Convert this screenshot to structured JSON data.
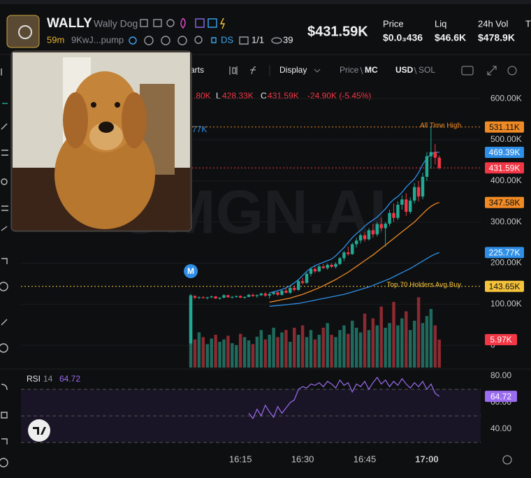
{
  "header": {
    "symbol": "WALLY",
    "name": "Wally Dog",
    "age": "59m",
    "address": "9KwJ...pump",
    "ds": "DS",
    "ratio": "1/1",
    "views": "39",
    "market_cap": "$431.59K",
    "stats": [
      {
        "label": "Price",
        "value": "$0.0₃436"
      },
      {
        "label": "Liq",
        "value": "$46.6K"
      },
      {
        "label": "24h Vol",
        "value": "$478.9K"
      },
      {
        "label": "T"
      }
    ]
  },
  "toolbar": {
    "charts": "arts",
    "display": "Display",
    "price": "Price",
    "mc": "MC",
    "usd": "USD",
    "sol": "SOL"
  },
  "legend": {
    "high": ".80K",
    "low_key": "L",
    "low": "428.33K",
    "close_key": "C",
    "close": "431.59K",
    "change": "-24.90K (-5.45%)",
    "partial": "77K"
  },
  "chart_data": {
    "type": "candlestick",
    "watermark": "GMGN.AI",
    "event_marker": "M",
    "x": [
      "16:03",
      "16:04",
      "16:05",
      "16:06",
      "16:07",
      "16:08",
      "16:09",
      "16:10",
      "16:11",
      "16:12",
      "16:13",
      "16:14",
      "16:15",
      "16:16",
      "16:17",
      "16:18",
      "16:19",
      "16:20",
      "16:21",
      "16:22",
      "16:23",
      "16:24",
      "16:25",
      "16:26",
      "16:27",
      "16:28",
      "16:29",
      "16:30",
      "16:31",
      "16:32",
      "16:33",
      "16:34",
      "16:35",
      "16:36",
      "16:37",
      "16:38",
      "16:39",
      "16:40",
      "16:41",
      "16:42",
      "16:43",
      "16:44",
      "16:45",
      "16:46",
      "16:47",
      "16:48",
      "16:49",
      "16:50",
      "16:51",
      "16:52",
      "16:53",
      "16:54",
      "16:55",
      "16:56",
      "16:57",
      "16:58",
      "16:59",
      "17:00",
      "17:01",
      "17:02",
      "17:03"
    ],
    "xlim": [
      "15:22",
      "17:13"
    ],
    "xticks": [
      "16:15",
      "16:30",
      "16:45",
      "17:00"
    ],
    "ylim": [
      -54000,
      619000
    ],
    "yticks": [
      0,
      {
        "value": 100000,
        "label": "100.00K"
      },
      {
        "value": 200000,
        "label": "200.00K"
      },
      {
        "value": 300000,
        "label": "300.00K"
      },
      {
        "value": 400000,
        "label": "400.00K"
      },
      {
        "value": 500000,
        "label": "500.00K"
      },
      {
        "value": 600000,
        "label": "600.00K"
      }
    ],
    "up_color": "#22ab94",
    "down_color": "#f23645",
    "ohlc": [
      [
        5000,
        125000,
        2000,
        120000
      ],
      [
        120000,
        122000,
        112000,
        116000
      ],
      [
        116000,
        119000,
        113000,
        117000
      ],
      [
        117000,
        120000,
        114000,
        115000
      ],
      [
        115000,
        118000,
        112000,
        117000
      ],
      [
        117000,
        121000,
        115000,
        119000
      ],
      [
        119000,
        120000,
        113000,
        114000
      ],
      [
        114000,
        117000,
        111000,
        116000
      ],
      [
        116000,
        124000,
        115000,
        122000
      ],
      [
        122000,
        123000,
        116000,
        117000
      ],
      [
        117000,
        120000,
        114000,
        118000
      ],
      [
        118000,
        121000,
        116000,
        120000
      ],
      [
        120000,
        122000,
        115000,
        116000
      ],
      [
        116000,
        119000,
        113000,
        118000
      ],
      [
        118000,
        125000,
        117000,
        123000
      ],
      [
        123000,
        126000,
        118000,
        120000
      ],
      [
        120000,
        124000,
        116000,
        122000
      ],
      [
        122000,
        128000,
        120000,
        126000
      ],
      [
        126000,
        130000,
        118000,
        121000
      ],
      [
        121000,
        127000,
        114000,
        125000
      ],
      [
        125000,
        132000,
        122000,
        129000
      ],
      [
        129000,
        131000,
        120000,
        123000
      ],
      [
        123000,
        136000,
        121000,
        133000
      ],
      [
        133000,
        140000,
        126000,
        128000
      ],
      [
        128000,
        142000,
        125000,
        140000
      ],
      [
        140000,
        146000,
        131000,
        135000
      ],
      [
        135000,
        160000,
        133000,
        156000
      ],
      [
        156000,
        165000,
        148000,
        152000
      ],
      [
        152000,
        178000,
        150000,
        174000
      ],
      [
        174000,
        190000,
        168000,
        186000
      ],
      [
        186000,
        192000,
        176000,
        180000
      ],
      [
        180000,
        196000,
        178000,
        192000
      ],
      [
        192000,
        198000,
        186000,
        188000
      ],
      [
        188000,
        199000,
        184000,
        196000
      ],
      [
        196000,
        200000,
        188000,
        191000
      ],
      [
        191000,
        202000,
        187000,
        198000
      ],
      [
        198000,
        215000,
        195000,
        212000
      ],
      [
        212000,
        230000,
        205000,
        226000
      ],
      [
        226000,
        240000,
        218000,
        222000
      ],
      [
        222000,
        250000,
        220000,
        246000
      ],
      [
        246000,
        262000,
        238000,
        255000
      ],
      [
        255000,
        272000,
        248000,
        268000
      ],
      [
        268000,
        275000,
        252000,
        258000
      ],
      [
        258000,
        285000,
        255000,
        280000
      ],
      [
        280000,
        296000,
        262000,
        270000
      ],
      [
        270000,
        300000,
        265000,
        295000
      ],
      [
        295000,
        310000,
        278000,
        285000
      ],
      [
        285000,
        300000,
        240000,
        296000
      ],
      [
        296000,
        330000,
        290000,
        322000
      ],
      [
        322000,
        345000,
        300000,
        310000
      ],
      [
        310000,
        350000,
        305000,
        342000
      ],
      [
        342000,
        365000,
        330000,
        355000
      ],
      [
        355000,
        370000,
        315000,
        325000
      ],
      [
        325000,
        360000,
        320000,
        352000
      ],
      [
        352000,
        395000,
        345000,
        385000
      ],
      [
        385000,
        400000,
        350000,
        362000
      ],
      [
        362000,
        420000,
        355000,
        410000
      ],
      [
        410000,
        470000,
        400000,
        460000
      ],
      [
        460000,
        531110,
        430000,
        470000
      ],
      [
        470000,
        490000,
        440000,
        456490
      ],
      [
        456490,
        461800,
        428330,
        431590
      ]
    ],
    "series": [
      {
        "color": "#2f8fe6",
        "values": [
          null,
          null,
          null,
          null,
          null,
          null,
          null,
          null,
          null,
          null,
          null,
          null,
          null,
          null,
          null,
          null,
          null,
          null,
          null,
          128000,
          130000,
          133000,
          136000,
          140000,
          145000,
          152000,
          160000,
          170000,
          180000,
          188000,
          194000,
          198000,
          202000,
          206000,
          210000,
          218000,
          228000,
          238000,
          250000,
          262000,
          272000,
          280000,
          290000,
          298000,
          305000,
          312000,
          322000,
          332000,
          345000,
          355000,
          362000,
          372000,
          385000,
          395000,
          405000,
          420000,
          440000,
          455000,
          465000,
          470000,
          469390
        ]
      },
      {
        "color": "#f08a24",
        "values": [
          null,
          null,
          null,
          null,
          null,
          null,
          null,
          null,
          null,
          null,
          null,
          null,
          null,
          null,
          null,
          null,
          null,
          null,
          null,
          105000,
          107000,
          109000,
          111000,
          113000,
          115000,
          118000,
          121000,
          124000,
          128000,
          132000,
          136000,
          140000,
          145000,
          150000,
          155000,
          160000,
          166000,
          172000,
          178000,
          185000,
          192000,
          199000,
          206000,
          213000,
          220000,
          228000,
          236000,
          244000,
          252000,
          260000,
          268000,
          276000,
          284000,
          292000,
          300000,
          310000,
          320000,
          330000,
          338000,
          344000,
          347580
        ]
      },
      {
        "color": "#2f8fe6",
        "values": [
          null,
          null,
          null,
          null,
          null,
          null,
          null,
          null,
          null,
          null,
          null,
          null,
          null,
          null,
          null,
          null,
          null,
          null,
          null,
          95000,
          96000,
          97000,
          98000,
          99000,
          100000,
          101000,
          102000,
          104000,
          106000,
          108000,
          110000,
          112000,
          114000,
          116000,
          118000,
          120000,
          122000,
          124000,
          127000,
          130000,
          133000,
          136000,
          139000,
          142000,
          146000,
          150000,
          154000,
          158000,
          162000,
          167000,
          172000,
          177000,
          182000,
          187000,
          193000,
          199000,
          205000,
          211000,
          217000,
          222000,
          225770
        ]
      }
    ],
    "volume": [
      15500,
      6000,
      7500,
      6500,
      5000,
      6200,
      7000,
      5500,
      6000,
      6800,
      5200,
      4800,
      7200,
      6500,
      5800,
      5000,
      6600,
      8000,
      6000,
      7000,
      8500,
      6500,
      7500,
      8000,
      5500,
      8500,
      7000,
      9000,
      6500,
      8000,
      6000,
      7000,
      8500,
      9500,
      7000,
      6500,
      8000,
      9000,
      7200,
      10000,
      8500,
      7500,
      11500,
      8000,
      10500,
      9000,
      13000,
      8500,
      9500,
      14000,
      9000,
      10500,
      12000,
      8000,
      10000,
      15000,
      9500,
      11000,
      12500,
      9000,
      5970
    ],
    "markers": [
      {
        "value": 531110,
        "label": "531.11K",
        "color": "#f08a24",
        "text": "All Time High",
        "line": "#f08a24"
      },
      {
        "value": 469390,
        "label": "469.39K",
        "color": "#2f8fe6"
      },
      {
        "value": 431590,
        "label": "431.59K",
        "color": "#f23645",
        "line": "#f23645"
      },
      {
        "value": 347580,
        "label": "347.58K",
        "color": "#f08a24"
      },
      {
        "value": 225770,
        "label": "225.77K",
        "color": "#2f8fe6"
      },
      {
        "value": 143650,
        "label": "143.65K",
        "color": "#f5c33b",
        "text": "Top 70 Holders Avg Buy",
        "line": "#f5c33b"
      }
    ],
    "volume_label": {
      "value": 5970,
      "label": "5.97K",
      "color": "#f23645"
    },
    "rsi": {
      "title": "RSI",
      "period": 14,
      "color": "#9a6cf0",
      "ylim": [
        25.3,
        85.3
      ],
      "yticks": [
        {
          "value": 40,
          "label": "40.00"
        },
        {
          "value": 60,
          "label": "60.00"
        },
        {
          "value": 80,
          "label": "80.00"
        }
      ],
      "bands": [
        30,
        50,
        70
      ],
      "values": [
        null,
        null,
        null,
        null,
        null,
        null,
        null,
        null,
        null,
        null,
        null,
        null,
        null,
        null,
        52,
        48,
        55,
        50,
        58,
        53,
        49,
        57,
        52,
        56,
        60,
        62,
        70,
        72,
        71,
        74,
        73,
        75,
        72,
        76,
        74,
        71,
        77,
        73,
        75,
        68,
        74,
        72,
        76,
        70,
        75,
        79,
        74,
        77,
        72,
        76,
        73,
        78,
        74,
        71,
        75,
        72,
        76,
        70,
        74,
        67,
        64.72
      ]
    }
  }
}
